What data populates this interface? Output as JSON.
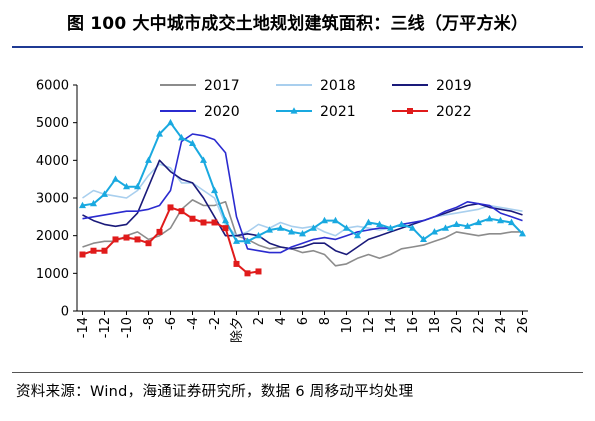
{
  "title": "图 100 大中城市成交土地规划建筑面积：三线（万平方米）",
  "source": "资料来源：Wind，海通证券研究所，数据 6 周移动平均处理",
  "chart_data": {
    "type": "line",
    "x": [
      "-14",
      "-13",
      "-12",
      "-11",
      "-10",
      "-9",
      "-8",
      "-7",
      "-6",
      "-5",
      "-4",
      "-3",
      "-2",
      "-1",
      "除夕",
      "1",
      "2",
      "3",
      "4",
      "5",
      "6",
      "7",
      "8",
      "9",
      "10",
      "11",
      "12",
      "13",
      "14",
      "15",
      "16",
      "17",
      "18",
      "19",
      "20",
      "21",
      "22",
      "23",
      "24",
      "25",
      "26"
    ],
    "x_tick_labels": [
      "-14",
      "-12",
      "-10",
      "-8",
      "-6",
      "-4",
      "-2",
      "除夕",
      "2",
      "4",
      "6",
      "8",
      "10",
      "12",
      "14",
      "16",
      "18",
      "20",
      "22",
      "24",
      "26"
    ],
    "ylim": [
      0,
      6000
    ],
    "y_ticks": [
      "0",
      "1000",
      "2000",
      "3000",
      "4000",
      "5000",
      "6000"
    ],
    "legend_position": "top",
    "series": [
      {
        "name": "2017",
        "color": "#8c8c8c",
        "marker": "none",
        "values": [
          1700,
          1800,
          1850,
          1850,
          2000,
          2100,
          1900,
          2000,
          2200,
          2700,
          2950,
          2800,
          2800,
          2900,
          2000,
          1900,
          1750,
          1650,
          1700,
          1650,
          1550,
          1600,
          1500,
          1200,
          1250,
          1400,
          1500,
          1400,
          1500,
          1650,
          1700,
          1750,
          1850,
          1950,
          2100,
          2050,
          2000,
          2050,
          2050,
          2100,
          2100
        ]
      },
      {
        "name": "2018",
        "color": "#a9cfee",
        "marker": "none",
        "values": [
          3000,
          3200,
          3100,
          3050,
          3000,
          3200,
          3600,
          3900,
          3800,
          3400,
          3400,
          3200,
          3000,
          2300,
          2000,
          2100,
          2300,
          2200,
          2350,
          2250,
          2200,
          2250,
          2100,
          2000,
          2200,
          2250,
          2200,
          2150,
          2200,
          2300,
          2350,
          2400,
          2500,
          2550,
          2600,
          2650,
          2700,
          2800,
          2750,
          2700,
          2650
        ]
      },
      {
        "name": "2019",
        "color": "#1a1a7a",
        "marker": "none",
        "values": [
          2550,
          2400,
          2300,
          2250,
          2300,
          2600,
          3300,
          4000,
          3700,
          3500,
          3400,
          3000,
          2500,
          2000,
          2000,
          2050,
          2000,
          1800,
          1700,
          1650,
          1700,
          1800,
          1800,
          1600,
          1500,
          1700,
          1900,
          2000,
          2100,
          2200,
          2300,
          2400,
          2500,
          2600,
          2700,
          2800,
          2850,
          2750,
          2700,
          2650,
          2550
        ]
      },
      {
        "name": "2020",
        "color": "#2b2bcf",
        "marker": "none",
        "values": [
          2450,
          2500,
          2550,
          2600,
          2650,
          2650,
          2700,
          2800,
          3200,
          4500,
          4700,
          4650,
          4550,
          4200,
          2500,
          1650,
          1600,
          1550,
          1550,
          1700,
          1800,
          1900,
          1950,
          1900,
          2000,
          2100,
          2150,
          2200,
          2200,
          2300,
          2350,
          2400,
          2500,
          2650,
          2750,
          2900,
          2850,
          2800,
          2600,
          2500,
          2400
        ]
      },
      {
        "name": "2021",
        "color": "#19a9e0",
        "marker": "triangle",
        "values": [
          2800,
          2850,
          3100,
          3500,
          3300,
          3300,
          4000,
          4700,
          5000,
          4600,
          4450,
          4000,
          3200,
          2400,
          1850,
          1850,
          2000,
          2150,
          2200,
          2100,
          2050,
          2200,
          2400,
          2400,
          2200,
          2000,
          2350,
          2300,
          2200,
          2300,
          2200,
          1900,
          2100,
          2200,
          2300,
          2250,
          2350,
          2450,
          2400,
          2350,
          2050
        ]
      },
      {
        "name": "2022",
        "color": "#e01b1b",
        "marker": "square",
        "values": [
          1500,
          1600,
          1600,
          1900,
          1950,
          1900,
          1800,
          2100,
          2750,
          2650,
          2450,
          2350,
          2350,
          2200,
          1250,
          1000,
          1050,
          null,
          null,
          null,
          null,
          null,
          null,
          null,
          null,
          null,
          null,
          null,
          null,
          null,
          null,
          null,
          null,
          null,
          null,
          null,
          null,
          null,
          null,
          null,
          null
        ]
      }
    ]
  }
}
